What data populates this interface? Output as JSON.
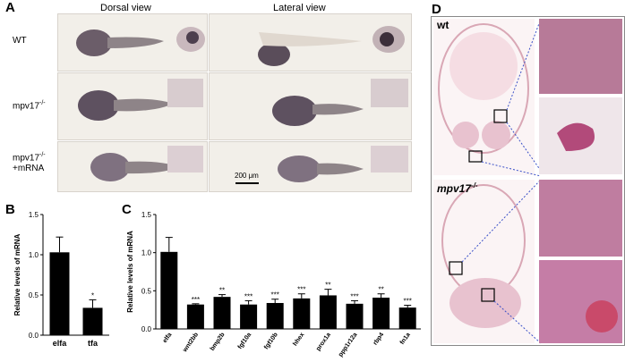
{
  "panel_a": {
    "letter": "A",
    "col_dorsal": "Dorsal view",
    "col_lateral": "Lateral view",
    "row_wt": "WT",
    "row_mpv17": "mpv17",
    "row_mpv17_sup": "-/-",
    "row_mpv17_mrna_line1": "mpv17",
    "row_mpv17_mrna_sup": "-/-",
    "row_mpv17_mrna_line2": "+mRNA",
    "scale_bar": "200 μm"
  },
  "panel_d": {
    "letter": "D",
    "label_wt": "wt",
    "label_mut": "mpv17",
    "label_mut_sup": "-/-"
  },
  "chart_data": [
    {
      "panel": "B",
      "type": "bar",
      "categories": [
        "elfa",
        "tfa"
      ],
      "values": [
        1.03,
        0.34
      ],
      "errors": [
        0.19,
        0.1
      ],
      "significance": [
        "",
        "*"
      ],
      "ylabel": "Relative levels of mRNA",
      "ylim": [
        0,
        1.5
      ],
      "yticks": [
        "0.0",
        "0.5",
        "1.0",
        "1.5"
      ]
    },
    {
      "panel": "C",
      "type": "bar",
      "categories": [
        "elfa",
        "wnt2bb",
        "bmp2b",
        "fgf10a",
        "fgf10b",
        "hhex",
        "prox1a",
        "ppp1r12a",
        "rbp4",
        "fn1a"
      ],
      "values": [
        1.01,
        0.32,
        0.42,
        0.32,
        0.34,
        0.4,
        0.44,
        0.33,
        0.41,
        0.28
      ],
      "errors": [
        0.19,
        0.01,
        0.03,
        0.05,
        0.05,
        0.06,
        0.08,
        0.04,
        0.05,
        0.03
      ],
      "significance": [
        "",
        "***",
        "**",
        "***",
        "***",
        "***",
        "**",
        "***",
        "**",
        "***"
      ],
      "ylabel": "Relative levels of mRNA",
      "ylim": [
        0,
        1.5
      ],
      "yticks": [
        "0.0",
        "0.5",
        "1.0",
        "1.5"
      ]
    }
  ]
}
